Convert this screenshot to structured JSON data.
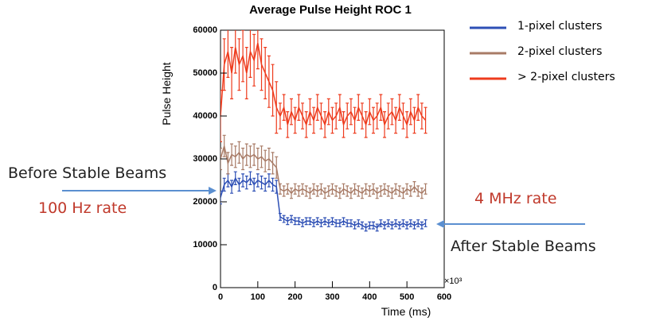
{
  "chart_data": {
    "type": "errorbar",
    "title": "Average Pulse Height ROC 1",
    "x_label": "Time (ms)",
    "y_label": "Pulse Height",
    "x_multiplier": "×10³",
    "xlim": [
      0,
      600
    ],
    "xticks": [
      0,
      100,
      200,
      300,
      400,
      500,
      600
    ],
    "ylim": [
      0,
      60000
    ],
    "yticks": [
      0,
      10000,
      20000,
      30000,
      40000,
      50000,
      60000
    ],
    "legend": "outside-right",
    "x": [
      0,
      10,
      20,
      30,
      40,
      50,
      60,
      70,
      80,
      90,
      100,
      110,
      120,
      130,
      140,
      150,
      160,
      170,
      180,
      190,
      200,
      210,
      220,
      230,
      240,
      250,
      260,
      270,
      280,
      290,
      300,
      310,
      320,
      330,
      340,
      350,
      360,
      370,
      380,
      390,
      400,
      410,
      420,
      430,
      440,
      450,
      460,
      470,
      480,
      490,
      500,
      510,
      520,
      530,
      540,
      550
    ],
    "series": [
      {
        "name": "1-pixel clusters",
        "color": "#2d4fb5",
        "values": [
          21000,
          24000,
          25000,
          23500,
          25500,
          24000,
          25000,
          24500,
          25500,
          24000,
          25000,
          24500,
          24000,
          25000,
          24000,
          23500,
          16500,
          16000,
          15500,
          16000,
          15500,
          15500,
          15000,
          15500,
          15500,
          15000,
          15500,
          15000,
          15500,
          15000,
          15500,
          15000,
          15000,
          15500,
          15000,
          15000,
          14500,
          15000,
          14500,
          14000,
          14500,
          14500,
          14000,
          15000,
          14500,
          15000,
          14500,
          15000,
          14500,
          15000,
          14500,
          15000,
          14500,
          15000,
          14500,
          15000
        ],
        "errors": [
          1500,
          1500,
          1500,
          1500,
          1500,
          1500,
          1500,
          1500,
          1500,
          1500,
          1500,
          1500,
          1500,
          1500,
          1500,
          1500,
          800,
          800,
          800,
          800,
          800,
          800,
          800,
          800,
          800,
          800,
          800,
          800,
          800,
          800,
          800,
          800,
          800,
          800,
          800,
          800,
          800,
          800,
          800,
          800,
          800,
          800,
          800,
          800,
          800,
          800,
          800,
          800,
          800,
          800,
          800,
          800,
          800,
          800,
          800,
          800
        ]
      },
      {
        "name": "2-pixel clusters",
        "color": "#a87b66",
        "values": [
          30000,
          33000,
          29000,
          31000,
          30500,
          31500,
          30000,
          31000,
          30500,
          31000,
          30000,
          30500,
          29500,
          30000,
          29000,
          28000,
          23000,
          22500,
          23000,
          22000,
          23000,
          22500,
          23000,
          22500,
          22000,
          23000,
          22500,
          23000,
          22000,
          22500,
          23000,
          22500,
          22000,
          23000,
          22500,
          22000,
          23000,
          22500,
          22000,
          23000,
          22500,
          23000,
          22000,
          22500,
          23000,
          22500,
          22000,
          23000,
          22500,
          22000,
          23000,
          22500,
          23500,
          22500,
          22000,
          23000
        ],
        "errors": [
          2500,
          2500,
          2500,
          2500,
          2500,
          2500,
          2500,
          2500,
          2500,
          2500,
          2500,
          2500,
          2500,
          2500,
          2500,
          2500,
          1200,
          1200,
          1200,
          1200,
          1200,
          1200,
          1200,
          1200,
          1200,
          1200,
          1200,
          1200,
          1200,
          1200,
          1200,
          1200,
          1200,
          1200,
          1200,
          1200,
          1200,
          1200,
          1200,
          1200,
          1200,
          1200,
          1200,
          1200,
          1200,
          1200,
          1200,
          1200,
          1200,
          1200,
          1200,
          1200,
          1200,
          1200,
          1200,
          1200
        ]
      },
      {
        "name": "> 2-pixel clusters",
        "color": "#ee3b1d",
        "values": [
          40000,
          52000,
          55000,
          50000,
          56000,
          52000,
          54000,
          50000,
          55000,
          53000,
          57000,
          52000,
          50000,
          48000,
          46000,
          42000,
          40000,
          42000,
          38000,
          41000,
          39000,
          42000,
          40000,
          38000,
          41000,
          39000,
          42000,
          40000,
          38000,
          41000,
          39000,
          40000,
          42000,
          38000,
          40000,
          41000,
          39000,
          42000,
          40000,
          38000,
          41000,
          39000,
          40000,
          42000,
          38000,
          40000,
          41000,
          39000,
          42000,
          40000,
          38000,
          41000,
          39000,
          42000,
          40000,
          39000
        ],
        "errors": [
          6000,
          6000,
          6000,
          6000,
          6000,
          6000,
          6000,
          6000,
          6000,
          6000,
          6000,
          6000,
          6000,
          6000,
          6000,
          6000,
          3000,
          3000,
          3000,
          3000,
          3000,
          3000,
          3000,
          3000,
          3000,
          3000,
          3000,
          3000,
          3000,
          3000,
          3000,
          3000,
          3000,
          3000,
          3000,
          3000,
          3000,
          3000,
          3000,
          3000,
          3000,
          3000,
          3000,
          3000,
          3000,
          3000,
          3000,
          3000,
          3000,
          3000,
          3000,
          3000,
          3000,
          3000,
          3000,
          3000
        ]
      }
    ],
    "annotations": {
      "before": "Before Stable Beams",
      "low_rate": "100 Hz rate",
      "high_rate": "4 MHz rate",
      "after": "After Stable Beams"
    }
  }
}
